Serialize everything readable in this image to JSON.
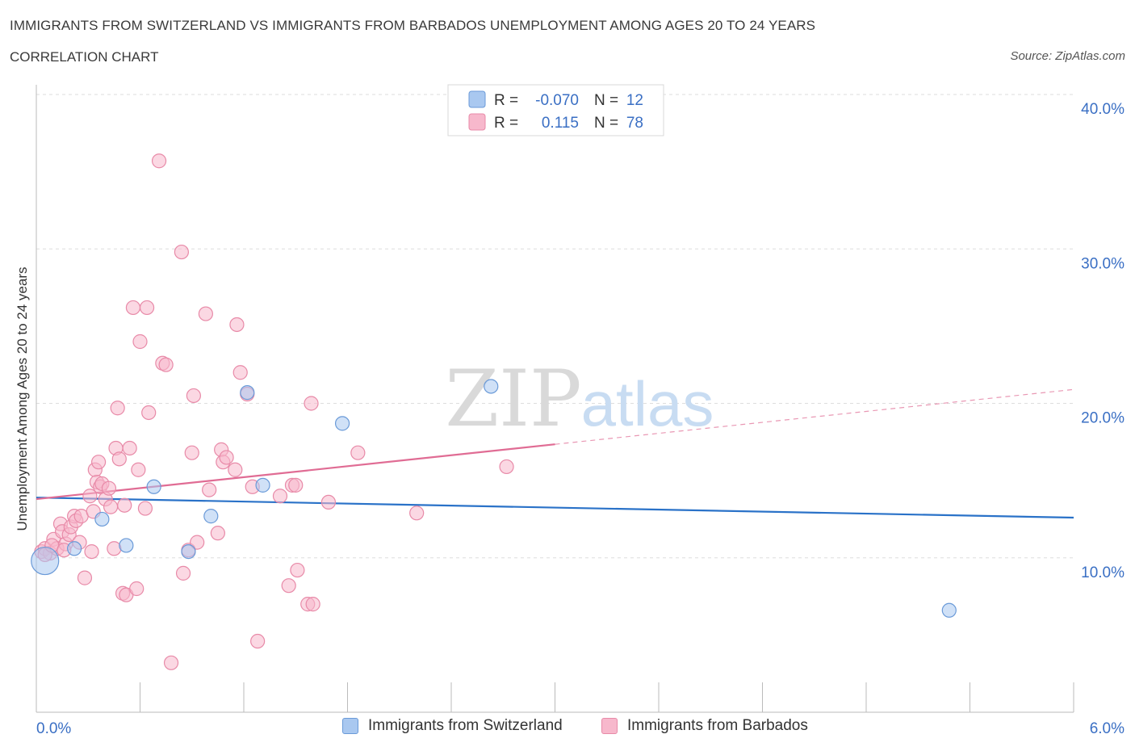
{
  "title": "IMMIGRANTS FROM SWITZERLAND VS IMMIGRANTS FROM BARBADOS UNEMPLOYMENT AMONG AGES 20 TO 24 YEARS",
  "subtitle": "CORRELATION CHART",
  "source": "Source: ZipAtlas.com",
  "watermark": {
    "zip": "ZIP",
    "atlas": "atlas"
  },
  "colors": {
    "switzerland_fill": "#a9c8f0",
    "switzerland_stroke": "#6a9ad8",
    "switzerland_line": "#2a72c8",
    "barbados_fill": "#f7b8cc",
    "barbados_stroke": "#e88aa8",
    "barbados_line": "#e06c94",
    "axis_label": "#3a6fc4",
    "grid": "#dddddd"
  },
  "legend_box": {
    "rows": [
      {
        "r_label": "R =",
        "r_value": "-0.070",
        "n_label": "N =",
        "n_value": "12"
      },
      {
        "r_label": "R =",
        "r_value": "0.115",
        "n_label": "N =",
        "n_value": "78"
      }
    ]
  },
  "chart_data": {
    "type": "scatter",
    "title": "IMMIGRANTS FROM SWITZERLAND VS IMMIGRANTS FROM BARBADOS UNEMPLOYMENT AMONG AGES 20 TO 24 YEARS",
    "ylabel": "Unemployment Among Ages 20 to 24 years",
    "xlabel": "",
    "xlim": [
      0,
      6.0
    ],
    "ylim": [
      0,
      40
    ],
    "x_tick_labels": [
      "0.0%",
      "6.0%"
    ],
    "y_ticks": [
      10,
      20,
      30,
      40
    ],
    "y_tick_labels": [
      "10.0%",
      "20.0%",
      "30.0%",
      "40.0%"
    ],
    "grid": true,
    "legend_position": "bottom",
    "series": [
      {
        "name": "Immigrants from Switzerland",
        "r": -0.07,
        "n": 12,
        "trend": {
          "x0": 0.0,
          "y0": 13.9,
          "x1": 6.0,
          "y1": 12.6,
          "solid_until": 6.0
        },
        "points": [
          {
            "x": 0.05,
            "y": 9.8,
            "size": "large"
          },
          {
            "x": 0.22,
            "y": 10.6
          },
          {
            "x": 0.38,
            "y": 12.5
          },
          {
            "x": 0.52,
            "y": 10.8
          },
          {
            "x": 0.68,
            "y": 14.6
          },
          {
            "x": 0.88,
            "y": 10.4
          },
          {
            "x": 1.01,
            "y": 12.7
          },
          {
            "x": 1.22,
            "y": 20.7
          },
          {
            "x": 1.31,
            "y": 14.7
          },
          {
            "x": 1.77,
            "y": 18.7
          },
          {
            "x": 2.63,
            "y": 21.1
          },
          {
            "x": 5.28,
            "y": 6.6
          }
        ]
      },
      {
        "name": "Immigrants from Barbados",
        "r": 0.115,
        "n": 78,
        "trend": {
          "x0": 0.0,
          "y0": 13.8,
          "x1": 6.0,
          "y1": 20.9,
          "solid_until": 3.0
        },
        "points": [
          {
            "x": 0.03,
            "y": 10.4
          },
          {
            "x": 0.05,
            "y": 10.6
          },
          {
            "x": 0.08,
            "y": 10.3
          },
          {
            "x": 0.1,
            "y": 11.2
          },
          {
            "x": 0.12,
            "y": 10.6
          },
          {
            "x": 0.14,
            "y": 12.2
          },
          {
            "x": 0.15,
            "y": 11.7
          },
          {
            "x": 0.17,
            "y": 10.9
          },
          {
            "x": 0.19,
            "y": 11.5
          },
          {
            "x": 0.2,
            "y": 12.0
          },
          {
            "x": 0.22,
            "y": 12.7
          },
          {
            "x": 0.23,
            "y": 12.4
          },
          {
            "x": 0.25,
            "y": 11.0
          },
          {
            "x": 0.26,
            "y": 12.7
          },
          {
            "x": 0.28,
            "y": 8.7
          },
          {
            "x": 0.31,
            "y": 14.0
          },
          {
            "x": 0.32,
            "y": 10.4
          },
          {
            "x": 0.33,
            "y": 13.0
          },
          {
            "x": 0.34,
            "y": 15.7
          },
          {
            "x": 0.35,
            "y": 14.9
          },
          {
            "x": 0.36,
            "y": 16.2
          },
          {
            "x": 0.37,
            "y": 14.6
          },
          {
            "x": 0.38,
            "y": 14.8
          },
          {
            "x": 0.4,
            "y": 13.8
          },
          {
            "x": 0.42,
            "y": 14.5
          },
          {
            "x": 0.43,
            "y": 13.3
          },
          {
            "x": 0.45,
            "y": 10.6
          },
          {
            "x": 0.46,
            "y": 17.1
          },
          {
            "x": 0.47,
            "y": 19.7
          },
          {
            "x": 0.48,
            "y": 16.4
          },
          {
            "x": 0.5,
            "y": 7.7
          },
          {
            "x": 0.51,
            "y": 13.4
          },
          {
            "x": 0.52,
            "y": 7.6
          },
          {
            "x": 0.54,
            "y": 17.1
          },
          {
            "x": 0.56,
            "y": 26.2
          },
          {
            "x": 0.58,
            "y": 8.0
          },
          {
            "x": 0.59,
            "y": 15.7
          },
          {
            "x": 0.6,
            "y": 24.0
          },
          {
            "x": 0.63,
            "y": 13.2
          },
          {
            "x": 0.64,
            "y": 26.2
          },
          {
            "x": 0.65,
            "y": 19.4
          },
          {
            "x": 0.71,
            "y": 35.7
          },
          {
            "x": 0.73,
            "y": 22.6
          },
          {
            "x": 0.75,
            "y": 22.5
          },
          {
            "x": 0.78,
            "y": 3.2
          },
          {
            "x": 0.84,
            "y": 29.8
          },
          {
            "x": 0.85,
            "y": 9.0
          },
          {
            "x": 0.88,
            "y": 10.5
          },
          {
            "x": 0.9,
            "y": 16.8
          },
          {
            "x": 0.91,
            "y": 20.5
          },
          {
            "x": 0.93,
            "y": 11.0
          },
          {
            "x": 0.98,
            "y": 25.8
          },
          {
            "x": 1.0,
            "y": 14.4
          },
          {
            "x": 1.05,
            "y": 11.6
          },
          {
            "x": 1.07,
            "y": 17.0
          },
          {
            "x": 1.08,
            "y": 16.2
          },
          {
            "x": 1.1,
            "y": 16.5
          },
          {
            "x": 1.15,
            "y": 15.7
          },
          {
            "x": 1.16,
            "y": 25.1
          },
          {
            "x": 1.18,
            "y": 22.0
          },
          {
            "x": 1.22,
            "y": 20.6
          },
          {
            "x": 1.25,
            "y": 14.6
          },
          {
            "x": 1.28,
            "y": 4.6
          },
          {
            "x": 1.41,
            "y": 14.0
          },
          {
            "x": 1.46,
            "y": 8.2
          },
          {
            "x": 1.48,
            "y": 14.7
          },
          {
            "x": 1.5,
            "y": 14.7
          },
          {
            "x": 1.51,
            "y": 9.2
          },
          {
            "x": 1.57,
            "y": 7.0
          },
          {
            "x": 1.59,
            "y": 20.0
          },
          {
            "x": 1.6,
            "y": 7.0
          },
          {
            "x": 1.69,
            "y": 13.6
          },
          {
            "x": 1.86,
            "y": 16.8
          },
          {
            "x": 2.2,
            "y": 12.9
          },
          {
            "x": 2.72,
            "y": 15.9
          },
          {
            "x": 0.05,
            "y": 10.2
          },
          {
            "x": 0.09,
            "y": 10.8
          },
          {
            "x": 0.16,
            "y": 10.5
          }
        ]
      }
    ]
  }
}
